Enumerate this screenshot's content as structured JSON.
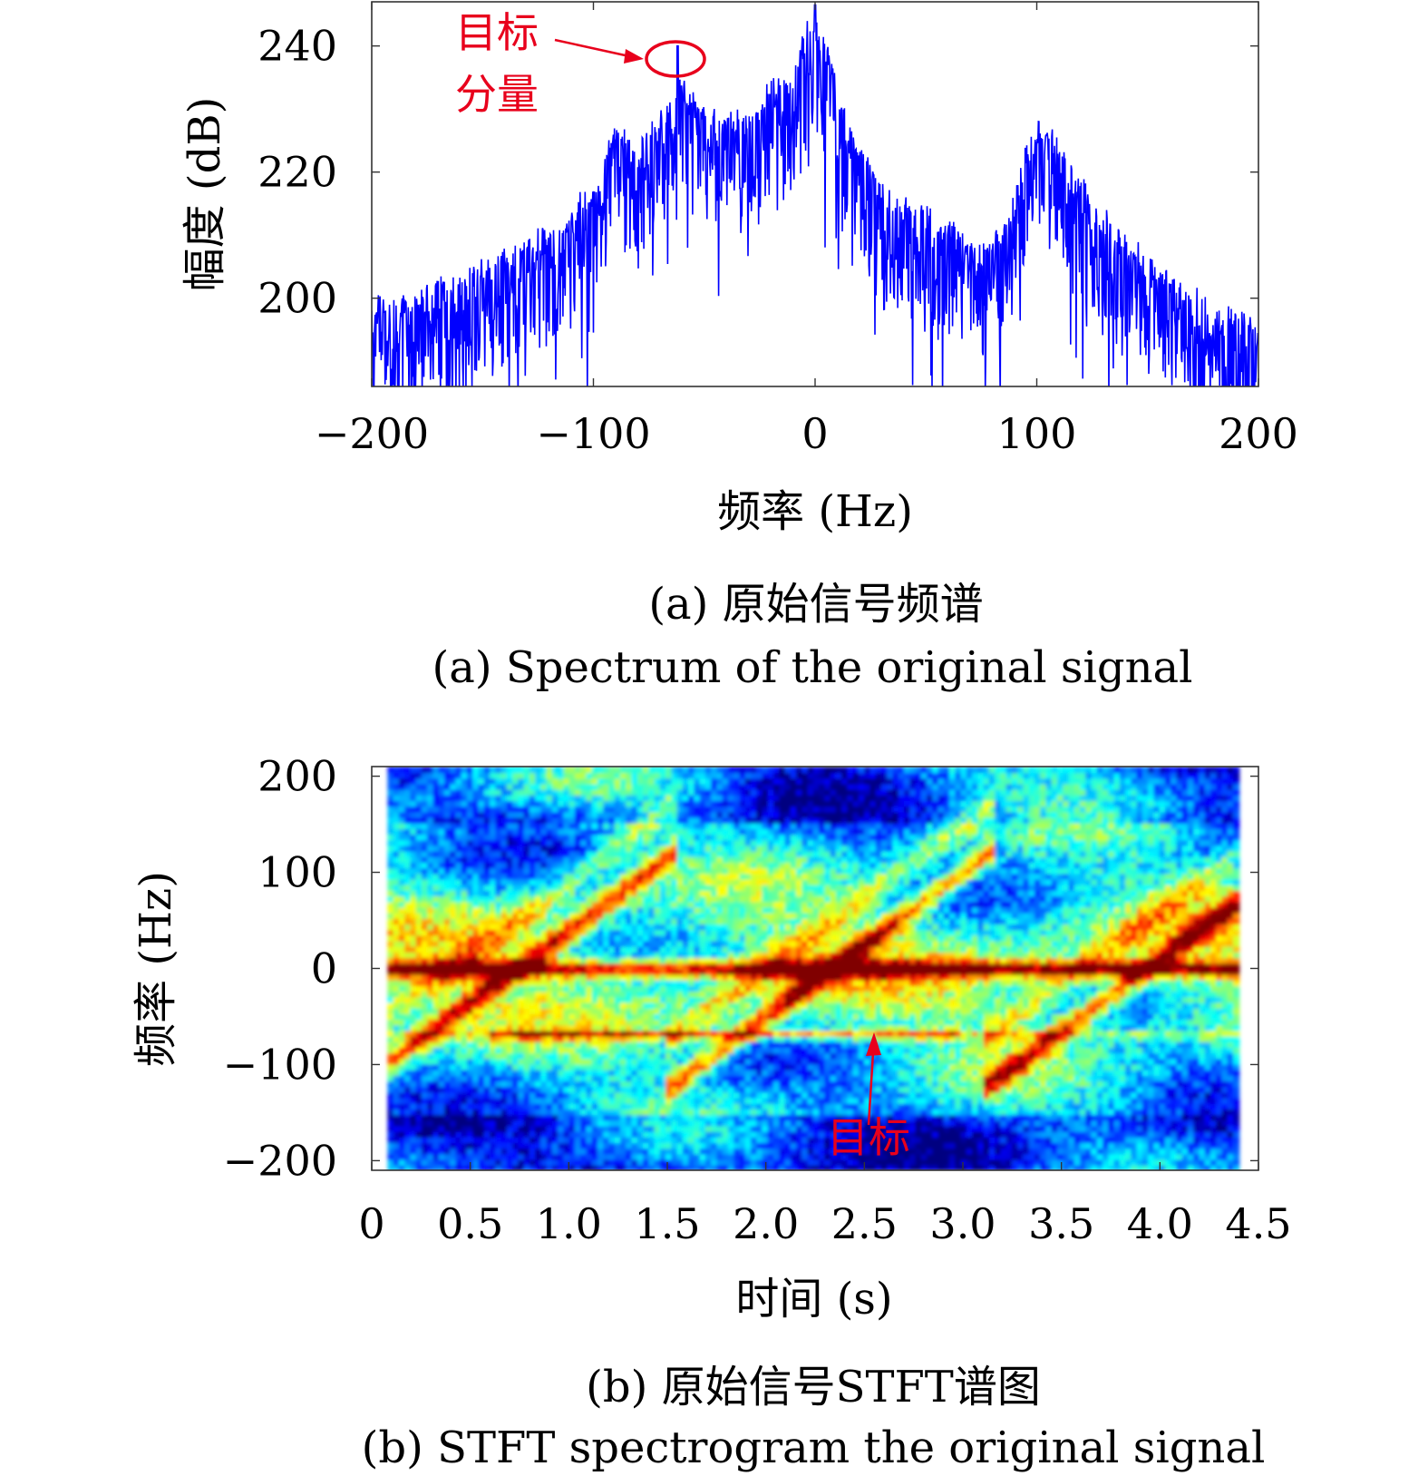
{
  "chart_data": [
    {
      "type": "line",
      "title": "",
      "xlabel": "频率 (Hz)",
      "ylabel": "幅度 (dB)",
      "xlim": [
        -200,
        200
      ],
      "ylim": [
        186,
        247
      ],
      "xticks": [
        "−200",
        "−100",
        "0",
        "100",
        "200"
      ],
      "xtick_values": [
        -200,
        -100,
        0,
        100,
        200
      ],
      "yticks": [
        "200",
        "220",
        "240"
      ],
      "ytick_values": [
        200,
        220,
        240
      ],
      "line_color": "#0000ff",
      "envelope": {
        "x": [
          -200,
          -180,
          -160,
          -140,
          -120,
          -100,
          -90,
          -80,
          -70,
          -62,
          -55,
          -45,
          -30,
          -20,
          -10,
          -5,
          0,
          5,
          10,
          20,
          30,
          45,
          60,
          75,
          85,
          95,
          100,
          105,
          115,
          125,
          140,
          160,
          180,
          200
        ],
        "y": [
          198,
          199,
          202,
          206,
          209,
          216,
          226,
          222,
          228,
          233,
          230,
          228,
          227,
          232,
          234,
          240,
          244,
          238,
          233,
          222,
          216,
          213,
          210,
          206,
          210,
          222,
          226,
          225,
          221,
          214,
          208,
          202,
          197,
          194
        ]
      },
      "spikes": [
        {
          "x": -62,
          "y": 240
        },
        {
          "x": 0,
          "y": 246.5
        }
      ],
      "annotation": {
        "text_line1": "目标",
        "text_line2": "分量",
        "target_x": -62,
        "target_y": 238.5,
        "color": "#e8001c"
      },
      "caption_cn": "(a) 原始信号频谱",
      "caption_en": "(a) Spectrum of the original signal"
    },
    {
      "type": "heatmap",
      "title": "",
      "xlabel": "时间 (s)",
      "ylabel": "频率 (Hz)",
      "xlim": [
        0,
        4.5
      ],
      "ylim": [
        -210,
        210
      ],
      "xticks": [
        "0",
        "0.5",
        "1.0",
        "1.5",
        "2.0",
        "2.5",
        "3.0",
        "3.5",
        "4.0",
        "4.5"
      ],
      "xtick_values": [
        0,
        0.5,
        1.0,
        1.5,
        2.0,
        2.5,
        3.0,
        3.5,
        4.0,
        4.5
      ],
      "yticks": [
        "200",
        "100",
        "0",
        "−100",
        "−200"
      ],
      "ytick_values": [
        200,
        100,
        0,
        -100,
        -200
      ],
      "colormap": "jet",
      "data_xrange": [
        0.08,
        4.4
      ],
      "features": {
        "dc_band_hz": 0,
        "target_band_hz": -68,
        "chirp_periods_s": [
          0.0,
          1.6,
          3.2
        ],
        "period_s": 1.55
      },
      "annotation": {
        "text": "目标",
        "x": 2.55,
        "y": -170,
        "arrow_to_y": -70,
        "color": "#e8001c"
      },
      "caption_cn": "(b) 原始信号STFT谱图",
      "caption_en": "(b) STFT spectrogram the original signal"
    }
  ]
}
